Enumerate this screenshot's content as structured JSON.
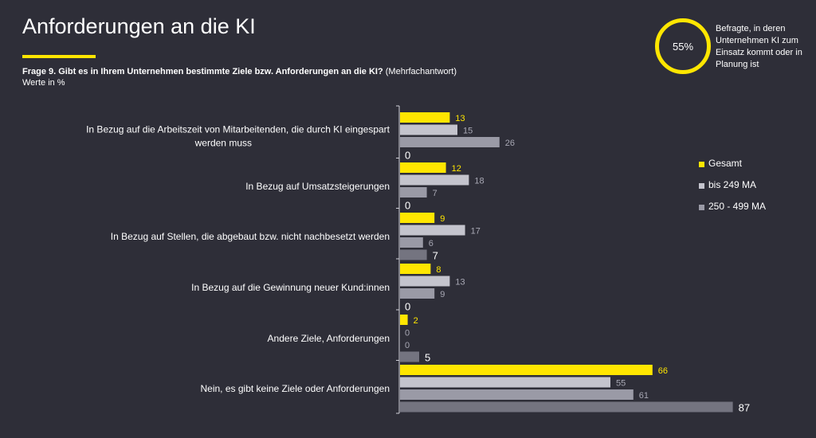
{
  "header": {
    "title": "Anforderungen an die KI",
    "question": "Frage 9. Gibt es in Ihrem Unternehmen bestimmte Ziele bzw. Anforderungen an die KI?",
    "question_note": "(Mehrfachantwort)",
    "unit": "Werte in %"
  },
  "badge": {
    "value": "55%",
    "text": "Befragte, in deren Unternehmen KI zum Einsatz kommt oder in Planung ist",
    "ring_color": "#ffe600"
  },
  "chart_data": {
    "type": "bar",
    "orientation": "horizontal",
    "categories": [
      "In Bezug auf die Arbeitszeit von Mitarbeitenden, die durch KI eingespart werden muss",
      "In Bezug auf Umsatzsteigerungen",
      "In Bezug auf Stellen, die abgebaut bzw. nicht nachbesetzt werden",
      "In Bezug auf die Gewinnung neuer Kund:innen",
      "Andere Ziele, Anforderungen",
      "Nein, es gibt keine Ziele oder Anforderungen"
    ],
    "series": [
      {
        "name": "Gesamt",
        "values": [
          13,
          12,
          9,
          8,
          2,
          66
        ],
        "color": "#ffe600",
        "label_color": "#ffe600"
      },
      {
        "name": "bis 249 MA",
        "values": [
          15,
          18,
          17,
          13,
          0,
          55
        ],
        "color": "#c4c4cd",
        "label_color": "#a8a8b4"
      },
      {
        "name": "250 - 499 MA",
        "values": [
          26,
          7,
          6,
          9,
          0,
          61
        ],
        "color": "#9a9aa6",
        "label_color": "#a8a8b4"
      },
      {
        "name": "",
        "values": [
          0,
          0,
          7,
          0,
          5,
          87
        ],
        "color": "#747480",
        "label_color": "#ffffff"
      }
    ],
    "xlim": [
      0,
      100
    ],
    "legend_position": "right",
    "grid": false
  }
}
